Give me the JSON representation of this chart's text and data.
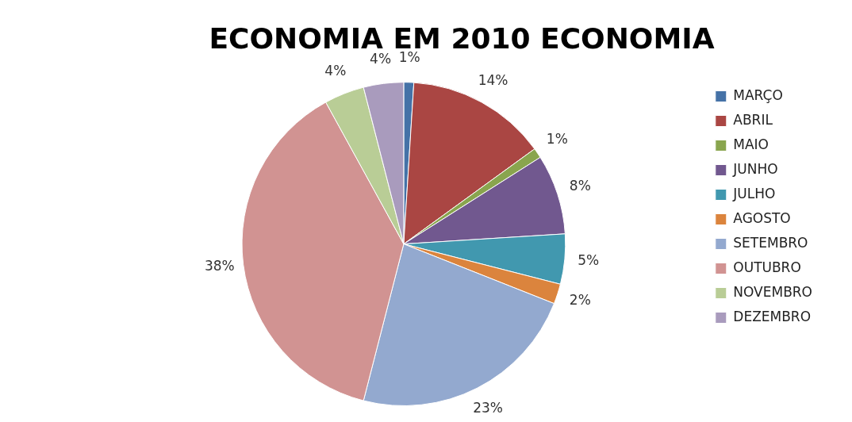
{
  "chart_data": {
    "type": "pie",
    "title": "ECONOMIA EM 2010 ECONOMIA",
    "categories": [
      "MARÇO",
      "ABRIL",
      "MAIO",
      "JUNHO",
      "JULHO",
      "AGOSTO",
      "SETEMBRO",
      "OUTUBRO",
      "NOVEMBRO",
      "DEZEMBRO"
    ],
    "values": [
      1,
      14,
      1,
      8,
      5,
      2,
      23,
      38,
      4,
      4
    ],
    "colors": [
      "#4572a7",
      "#aa4643",
      "#89a54e",
      "#71588f",
      "#4198af",
      "#db843d",
      "#93a9cf",
      "#d19392",
      "#b9cd96",
      "#a99bbd"
    ],
    "value_labels": [
      "1%",
      "14%",
      "1%",
      "8%",
      "5%",
      "2%",
      "23%",
      "38%",
      "4%",
      "4%"
    ],
    "legend": "right"
  }
}
